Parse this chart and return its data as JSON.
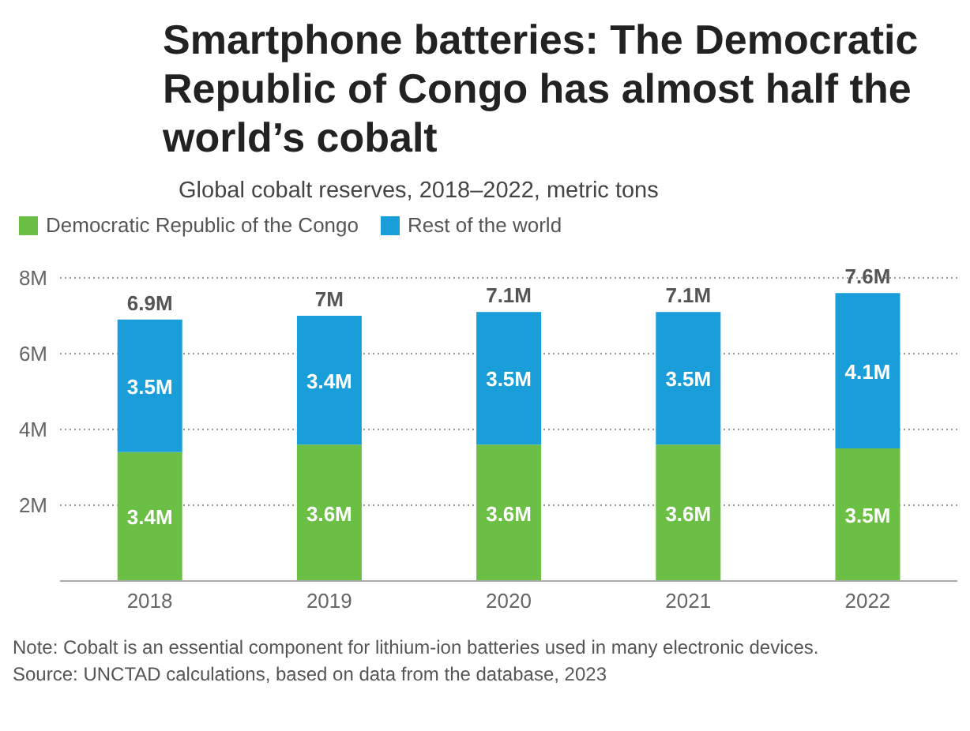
{
  "chart_data": {
    "type": "bar",
    "stacked": true,
    "title": "Smartphone batteries: The Democratic Republic of Congo has almost half the world’s cobalt",
    "subtitle": "Global cobalt reserves, 2018–2022, metric tons",
    "categories": [
      "2018",
      "2019",
      "2020",
      "2021",
      "2022"
    ],
    "series": [
      {
        "name": "Democratic Republic of the Congo",
        "color": "#6cbf45",
        "values": [
          3.4,
          3.6,
          3.6,
          3.6,
          3.5
        ],
        "value_labels": [
          "3.4M",
          "3.6M",
          "3.6M",
          "3.6M",
          "3.5M"
        ]
      },
      {
        "name": "Rest of the world",
        "color": "#1a9ed9",
        "values": [
          3.5,
          3.4,
          3.5,
          3.5,
          4.1
        ],
        "value_labels": [
          "3.5M",
          "3.4M",
          "3.5M",
          "3.5M",
          "4.1M"
        ]
      }
    ],
    "totals": [
      "6.9M",
      "7M",
      "7.1M",
      "7.1M",
      "7.6M"
    ],
    "ylim": [
      0,
      8
    ],
    "yticks": [
      {
        "value": 0,
        "label": null
      },
      {
        "value": 2,
        "label": "2M"
      },
      {
        "value": 4,
        "label": "4M"
      },
      {
        "value": 6,
        "label": "6M"
      },
      {
        "value": 8,
        "label": "8M"
      }
    ],
    "grid": "y",
    "legend": "top left",
    "annotations": [
      "Note: Cobalt is an essential component for lithium-ion batteries used in many electronic devices.",
      "Source: UNCTAD calculations, based on data from the database, 2023"
    ]
  }
}
